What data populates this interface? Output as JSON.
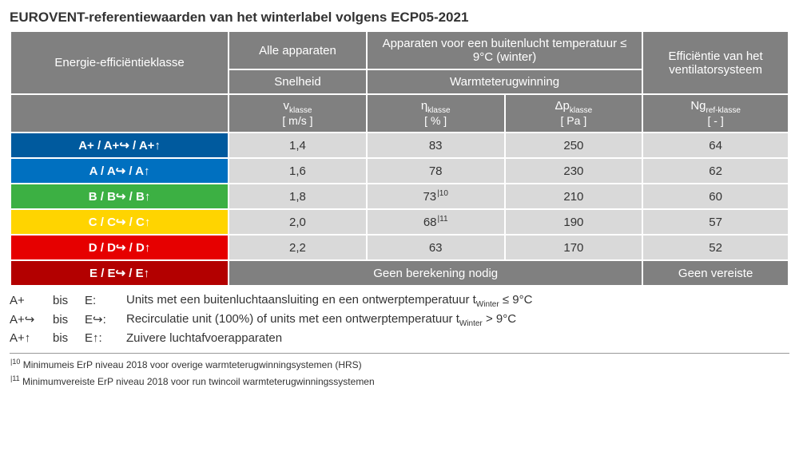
{
  "title": "EUROVENT-referentiewaarden van het winterlabel volgens ECP05-2021",
  "colors": {
    "Aplus": "#005a9e",
    "A": "#0070c0",
    "B": "#3cb043",
    "C": "#ffd400",
    "D": "#e60000",
    "E": "#b30000",
    "header": "#808080",
    "valbg": "#d9d9d9",
    "text": "#333333"
  },
  "header": {
    "col1": "Energie-efficiëntieklasse",
    "col2": "Alle apparaten",
    "col3": "Apparaten voor een buitenlucht temperatuur ≤ 9°C (winter)",
    "col4": "Efficiëntie van het ventilatorsysteem",
    "sub1": "Snelheid",
    "sub2": "Warmteterugwinning",
    "sym1_v": "v",
    "sym1_sub": "klasse",
    "sym1_unit": "[ m/s ]",
    "sym2_v": "η",
    "sym2_sub": "klasse",
    "sym2_unit": "[ % ]",
    "sym3_v": "Δp",
    "sym3_sub": "klasse",
    "sym3_unit": "[ Pa ]",
    "sym4_v": "Ng",
    "sym4_sub": "ref-klasse",
    "sym4_unit": "[ - ]"
  },
  "rows": [
    {
      "label": "A+ / A+↪ / A+↑",
      "colorKey": "Aplus",
      "v": "1,4",
      "eta": "83",
      "etasup": "",
      "dp": "250",
      "ng": "64"
    },
    {
      "label": "A / A↪ / A↑",
      "colorKey": "A",
      "v": "1,6",
      "eta": "78",
      "etasup": "",
      "dp": "230",
      "ng": "62"
    },
    {
      "label": "B / B↪ / B↑",
      "colorKey": "B",
      "v": "1,8",
      "eta": "73",
      "etasup": "|10",
      "dp": "210",
      "ng": "60"
    },
    {
      "label": "C / C↪ / C↑",
      "colorKey": "C",
      "v": "2,0",
      "eta": "68",
      "etasup": "|11",
      "dp": "190",
      "ng": "57"
    },
    {
      "label": "D / D↪ / D↑",
      "colorKey": "D",
      "v": "2,2",
      "eta": "63",
      "etasup": "",
      "dp": "170",
      "ng": "52"
    }
  ],
  "rowE": {
    "label": "E / E↪ / E↑",
    "colorKey": "E",
    "merge1": "Geen berekening nodig",
    "merge2": "Geen vereiste"
  },
  "legend": {
    "l1a": "A+",
    "l1b": "bis",
    "l1c": "E:",
    "l1d_pre": "Units met een buitenluchtaansluiting en een ontwerptemperatuur t",
    "l1d_sub": "Winter",
    "l1d_post": " ≤ 9°C",
    "l2a": "A+↪",
    "l2b": "bis",
    "l2c": "E↪:",
    "l2d_pre": "Recirculatie unit (100%) of units met een ontwerptemperatuur t",
    "l2d_sub": "Winter",
    "l2d_post": " > 9°C",
    "l3a": "A+↑",
    "l3b": "bis",
    "l3c": "E↑:",
    "l3d": "Zuivere luchtafvoerapparaten"
  },
  "footnotes": {
    "f10_sup": "|10",
    "f10": " Minimumeis ErP niveau 2018 voor overige warmteterugwinningsystemen (HRS)",
    "f11_sup": "|11",
    "f11": " Minimumvereiste ErP niveau 2018 voor run twincoil warmteterugwinningssystemen"
  }
}
